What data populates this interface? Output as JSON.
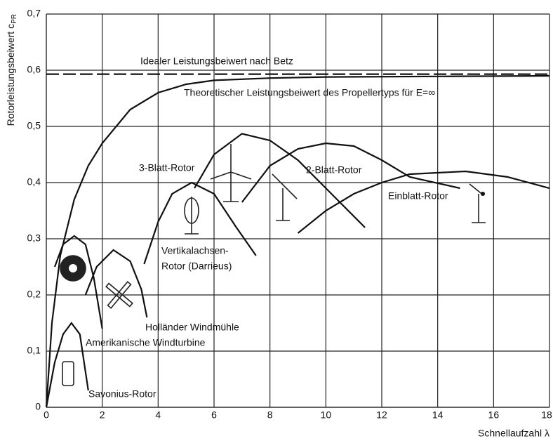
{
  "chart_data": {
    "type": "line",
    "ylabel": "Rotorleistungsbeiwert c",
    "ylabel_sub": "PR",
    "xlabel": "Schnellaufzahl λ",
    "xlim": [
      0,
      18
    ],
    "xticks": [
      0,
      2,
      4,
      6,
      8,
      10,
      12,
      14,
      16,
      18
    ],
    "ylim": [
      0,
      0.7
    ],
    "yticks": [
      0,
      {
        "value": 0.1,
        "label": "0,1"
      },
      {
        "value": 0.2,
        "label": "0,2"
      },
      {
        "value": 0.3,
        "label": "0,3"
      },
      {
        "value": 0.4,
        "label": "0,4"
      },
      {
        "value": 0.5,
        "label": "0,5"
      },
      {
        "value": 0.6,
        "label": "0,6"
      },
      {
        "value": 0.7,
        "label": "0,7"
      }
    ],
    "grid": true,
    "series": [
      {
        "name": [
          "Idealer Leistungsbeiwert nach Betz"
        ],
        "color": "#111111",
        "dashed": true,
        "x": [
          0,
          18
        ],
        "values": [
          0.593,
          0.593
        ]
      },
      {
        "name": [
          "Theoretischer Leistungsbeiwert des Propellertyps für E=∞"
        ],
        "color": "#111111",
        "x": [
          0,
          0.2,
          0.5,
          1,
          1.5,
          2,
          3,
          4,
          5,
          6,
          8,
          10,
          14,
          18
        ],
        "values": [
          0,
          0.15,
          0.27,
          0.37,
          0.43,
          0.47,
          0.53,
          0.56,
          0.575,
          0.582,
          0.586,
          0.588,
          0.589,
          0.59
        ]
      },
      {
        "name": [
          "Savonius-Rotor"
        ],
        "color": "#111111",
        "x": [
          0,
          0.3,
          0.6,
          0.9,
          1.2,
          1.5
        ],
        "values": [
          0,
          0.08,
          0.13,
          0.15,
          0.13,
          0.03
        ]
      },
      {
        "name": [
          "Amerikanische Windturbine"
        ],
        "color": "#111111",
        "x": [
          0.3,
          0.6,
          1,
          1.4,
          1.7,
          2
        ],
        "values": [
          0.25,
          0.29,
          0.305,
          0.29,
          0.23,
          0.14
        ]
      },
      {
        "name": [
          "Holländer Windmühle"
        ],
        "color": "#111111",
        "x": [
          1.4,
          1.8,
          2.4,
          3,
          3.4,
          3.6
        ],
        "values": [
          0.2,
          0.25,
          0.28,
          0.26,
          0.21,
          0.16
        ]
      },
      {
        "name": [
          "Vertikalachsen-",
          "Rotor (Darrieus)"
        ],
        "color": "#111111",
        "x": [
          3.5,
          4,
          4.5,
          5.2,
          6,
          6.8,
          7.5
        ],
        "values": [
          0.255,
          0.33,
          0.38,
          0.4,
          0.38,
          0.32,
          0.27
        ]
      },
      {
        "name": [
          "3-Blatt-Rotor"
        ],
        "color": "#111111",
        "x": [
          5.3,
          6,
          7,
          8,
          9,
          10,
          11.4
        ],
        "values": [
          0.39,
          0.45,
          0.487,
          0.475,
          0.44,
          0.39,
          0.32
        ]
      },
      {
        "name": [
          "2-Blatt-Rotor"
        ],
        "color": "#111111",
        "x": [
          7,
          8,
          9,
          10,
          11,
          12,
          13,
          14.8
        ],
        "values": [
          0.365,
          0.43,
          0.46,
          0.47,
          0.465,
          0.44,
          0.41,
          0.39
        ]
      },
      {
        "name": [
          "Einblatt-Rotor"
        ],
        "color": "#111111",
        "x": [
          9,
          10,
          11,
          12,
          13,
          15,
          16.5,
          18
        ],
        "values": [
          0.31,
          0.35,
          0.38,
          0.4,
          0.415,
          0.42,
          0.41,
          0.39
        ]
      }
    ]
  }
}
